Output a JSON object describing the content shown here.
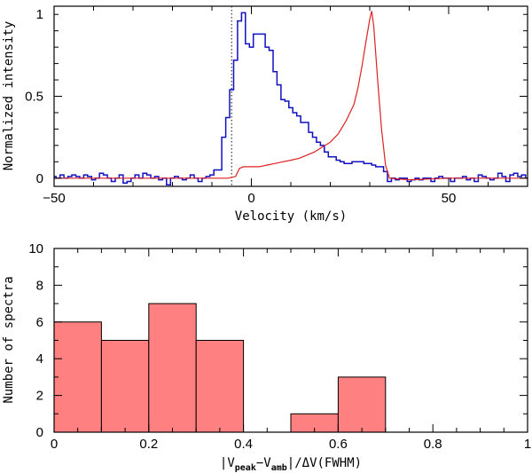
{
  "chart_data": [
    {
      "type": "line",
      "xlabel": "Velocity (km/s)",
      "ylabel": "Normalized intensity",
      "xlim": [
        -50,
        70
      ],
      "ylim": [
        -0.05,
        1.05
      ],
      "xticks": [
        -50,
        0,
        50
      ],
      "yticks": [
        0,
        0.5,
        1
      ],
      "xtick_labels": [
        "−50",
        "0",
        "50"
      ],
      "ytick_labels": [
        "0",
        "0.5",
        "1"
      ],
      "vline": {
        "x": -5,
        "style": "dotted"
      },
      "series": [
        {
          "color": "#1010c0",
          "style": "step",
          "x": [
            -50,
            -49,
            -48,
            -47,
            -46,
            -45,
            -44,
            -43,
            -42,
            -41,
            -40,
            -39,
            -38,
            -37,
            -36,
            -35,
            -34,
            -33,
            -32,
            -31,
            -30,
            -29,
            -28,
            -27,
            -26,
            -25,
            -24,
            -23,
            -22,
            -21,
            -20,
            -19,
            -18,
            -17,
            -16,
            -15,
            -14,
            -13,
            -12,
            -11,
            -10,
            -9,
            -8,
            -7,
            -6,
            -5,
            -4,
            -3,
            -2,
            -1,
            0,
            1,
            2,
            3,
            4,
            5,
            6,
            7,
            8,
            9,
            10,
            11,
            12,
            13,
            14,
            15,
            16,
            17,
            18,
            19,
            20,
            21,
            22,
            23,
            24,
            25,
            26,
            27,
            28,
            29,
            30,
            31,
            32,
            33,
            34,
            35,
            36,
            37,
            38,
            39,
            40,
            41,
            42,
            43,
            44,
            45,
            46,
            47,
            48,
            49,
            50,
            51,
            52,
            53,
            54,
            55,
            56,
            57,
            58,
            59,
            60,
            61,
            62,
            63,
            64,
            65,
            66,
            67,
            68,
            69,
            70
          ],
          "y": [
            0.01,
            0.0,
            0.02,
            0.0,
            0.01,
            0.02,
            0.01,
            0.0,
            0.02,
            0.01,
            -0.01,
            0.0,
            0.03,
            0.02,
            0.0,
            -0.02,
            0.0,
            0.02,
            -0.03,
            -0.02,
            0.0,
            0.02,
            0.0,
            0.03,
            0.02,
            0.0,
            0.01,
            -0.01,
            0.0,
            -0.04,
            0.0,
            0.01,
            0.0,
            -0.01,
            0.0,
            0.02,
            0.0,
            -0.02,
            0.0,
            0.01,
            0.02,
            0.05,
            0.05,
            0.25,
            0.37,
            0.54,
            0.72,
            0.96,
            1.01,
            0.82,
            0.8,
            0.88,
            0.88,
            0.88,
            0.8,
            0.78,
            0.65,
            0.57,
            0.48,
            0.47,
            0.43,
            0.4,
            0.38,
            0.34,
            0.34,
            0.28,
            0.25,
            0.22,
            0.2,
            0.16,
            0.13,
            0.13,
            0.11,
            0.1,
            0.09,
            0.09,
            0.1,
            0.1,
            0.1,
            0.09,
            0.09,
            0.08,
            0.07,
            0.07,
            0.04,
            -0.02,
            0.0,
            -0.01,
            0.0,
            0.0,
            -0.02,
            -0.01,
            0.0,
            -0.01,
            0.0,
            0.0,
            -0.02,
            0.0,
            0.01,
            0.0,
            0.0,
            -0.02,
            0.0,
            0.0,
            0.01,
            -0.01,
            0.0,
            -0.02,
            0.02,
            0.01,
            0.0,
            -0.01,
            0.0,
            0.03,
            0.01,
            -0.02,
            0.02,
            0.03,
            0.01,
            0.02,
            0.0
          ]
        },
        {
          "color": "#e02020",
          "style": "line",
          "x": [
            -50,
            -30,
            -10,
            -6,
            -4,
            -3,
            -2,
            0,
            2,
            4,
            6,
            8,
            10,
            12,
            14,
            16,
            18,
            20,
            22,
            24,
            26,
            27,
            28,
            29,
            30,
            30.5,
            31,
            32,
            33,
            34,
            35,
            40,
            50,
            60,
            70
          ],
          "y": [
            0.0,
            0.0,
            0.0,
            0.0,
            0.01,
            0.06,
            0.07,
            0.07,
            0.07,
            0.08,
            0.09,
            0.1,
            0.11,
            0.12,
            0.14,
            0.16,
            0.19,
            0.22,
            0.27,
            0.35,
            0.45,
            0.55,
            0.68,
            0.83,
            0.97,
            1.02,
            0.93,
            0.6,
            0.3,
            0.08,
            0.0,
            -0.01,
            0.0,
            0.0,
            0.0
          ]
        }
      ]
    },
    {
      "type": "bar",
      "xlabel_parts": [
        "|V",
        "peak",
        "−V",
        "amb",
        "|/ΔV(FWHM)"
      ],
      "ylabel": "Number of spectra",
      "xlim": [
        0,
        1
      ],
      "ylim": [
        0,
        10
      ],
      "xticks": [
        0,
        0.2,
        0.4,
        0.6,
        0.8,
        1
      ],
      "yticks": [
        0,
        2,
        4,
        6,
        8,
        10
      ],
      "xtick_labels": [
        "0",
        "0.2",
        "0.4",
        "0.6",
        "0.8",
        "1"
      ],
      "ytick_labels": [
        "0",
        "2",
        "4",
        "6",
        "8",
        "10"
      ],
      "bar_color": "#ff8080",
      "bins": [
        {
          "x0": 0.0,
          "x1": 0.1,
          "value": 6
        },
        {
          "x0": 0.1,
          "x1": 0.2,
          "value": 5
        },
        {
          "x0": 0.2,
          "x1": 0.3,
          "value": 7
        },
        {
          "x0": 0.3,
          "x1": 0.4,
          "value": 5
        },
        {
          "x0": 0.5,
          "x1": 0.6,
          "value": 1
        },
        {
          "x0": 0.6,
          "x1": 0.7,
          "value": 3
        }
      ]
    }
  ]
}
